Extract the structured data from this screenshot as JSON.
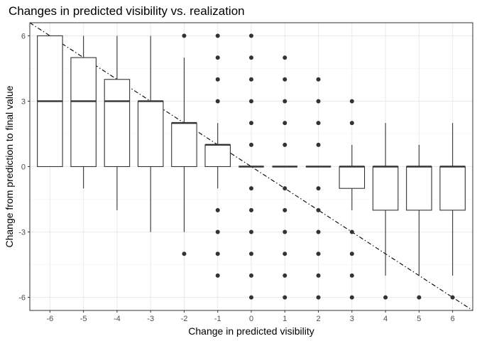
{
  "chart_data": {
    "type": "boxplot",
    "title": "Changes in predicted visibility vs. realization",
    "xlabel": "Change in predicted visibility",
    "ylabel": "Change from prediction to final value",
    "categories": [
      "-6",
      "-5",
      "-4",
      "-3",
      "-2",
      "-1",
      "0",
      "1",
      "2",
      "3",
      "4",
      "5",
      "6"
    ],
    "x_values": [
      -6,
      -5,
      -4,
      -3,
      -2,
      -1,
      0,
      1,
      2,
      3,
      4,
      5,
      6
    ],
    "ylim": [
      -6.6,
      6.6
    ],
    "yticks": [
      -6,
      -3,
      0,
      3,
      6
    ],
    "ytick_labels": [
      "-6",
      "-3",
      "0",
      "3",
      "6"
    ],
    "grid": true,
    "reference_line": {
      "slope": -1,
      "intercept": 0,
      "style": "dotdash"
    },
    "boxes": [
      {
        "x": -6,
        "ymin": 0,
        "q1": 0,
        "median": 3,
        "q3": 6,
        "ymax": 6,
        "outliers": []
      },
      {
        "x": -5,
        "ymin": -1,
        "q1": 0,
        "median": 3,
        "q3": 5,
        "ymax": 6,
        "outliers": []
      },
      {
        "x": -4,
        "ymin": -2,
        "q1": 0,
        "median": 3,
        "q3": 4,
        "ymax": 6,
        "outliers": []
      },
      {
        "x": -3,
        "ymin": -3,
        "q1": 0,
        "median": 3,
        "q3": 3,
        "ymax": 6,
        "outliers": []
      },
      {
        "x": -2,
        "ymin": -3,
        "q1": 0,
        "median": 2,
        "q3": 2,
        "ymax": 5,
        "outliers": [
          6,
          -4
        ]
      },
      {
        "x": -1,
        "ymin": -1,
        "q1": 0,
        "median": 1,
        "q3": 1,
        "ymax": 2,
        "outliers": [
          6,
          5,
          4,
          3,
          -2,
          -3,
          -4,
          -5
        ]
      },
      {
        "x": 0,
        "ymin": 0,
        "q1": 0,
        "median": 0,
        "q3": 0,
        "ymax": 0,
        "outliers": [
          6,
          5,
          4,
          3,
          2,
          1,
          -1,
          -2,
          -3,
          -4,
          -5,
          -6
        ]
      },
      {
        "x": 1,
        "ymin": 0,
        "q1": 0,
        "median": 0,
        "q3": 0,
        "ymax": 0,
        "outliers": [
          5,
          4,
          3,
          2,
          1,
          -1,
          -2,
          -3,
          -4,
          -5,
          -6
        ]
      },
      {
        "x": 2,
        "ymin": 0,
        "q1": 0,
        "median": 0,
        "q3": 0,
        "ymax": 0,
        "outliers": [
          4,
          3,
          2,
          1,
          -1,
          -2,
          -3,
          -4,
          -5,
          -6
        ]
      },
      {
        "x": 3,
        "ymin": -2,
        "q1": -1,
        "median": 0,
        "q3": 0,
        "ymax": 1,
        "outliers": [
          3,
          2,
          -3,
          -4,
          -5,
          -6
        ]
      },
      {
        "x": 4,
        "ymin": -5,
        "q1": -2,
        "median": 0,
        "q3": 0,
        "ymax": 2,
        "outliers": [
          -6
        ]
      },
      {
        "x": 5,
        "ymin": -5,
        "q1": -2,
        "median": 0,
        "q3": 0,
        "ymax": 1,
        "outliers": [
          -6
        ]
      },
      {
        "x": 6,
        "ymin": -5,
        "q1": -2,
        "median": 0,
        "q3": 0,
        "ymax": 2,
        "outliers": [
          -6
        ]
      }
    ]
  }
}
